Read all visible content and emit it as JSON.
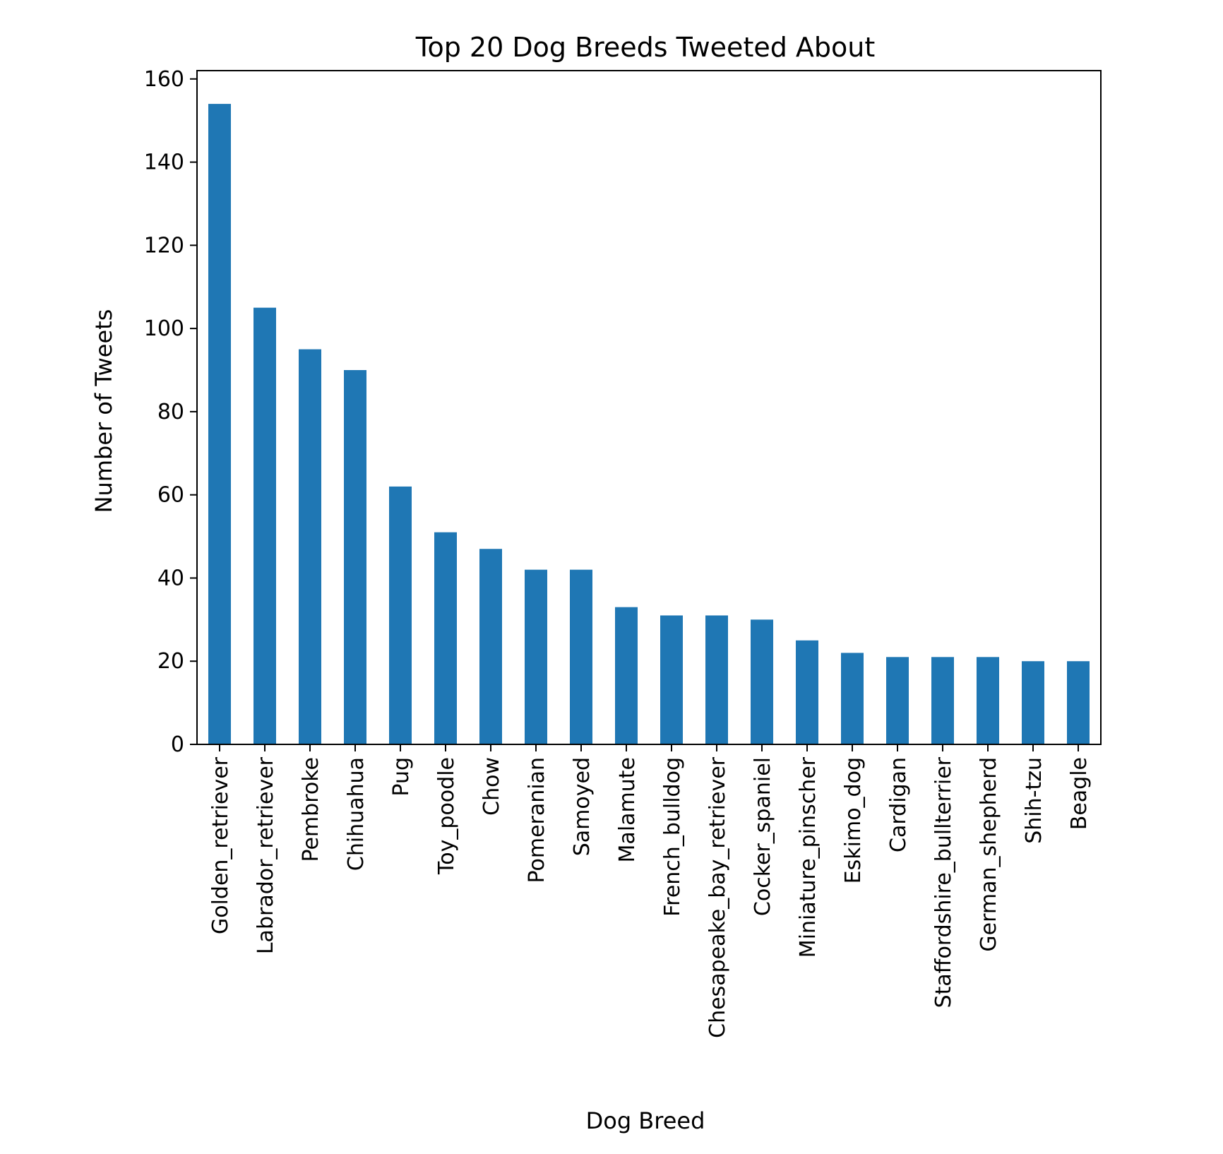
{
  "chart_data": {
    "type": "bar",
    "title": "Top 20 Dog Breeds Tweeted About",
    "xlabel": "Dog Breed",
    "ylabel": "Number of Tweets",
    "ylim": [
      0,
      162
    ],
    "yticks": [
      0,
      20,
      40,
      60,
      80,
      100,
      120,
      140,
      160
    ],
    "grid": false,
    "legend": "none",
    "bar_color": "#1f77b4",
    "categories": [
      "Golden_retriever",
      "Labrador_retriever",
      "Pembroke",
      "Chihuahua",
      "Pug",
      "Toy_poodle",
      "Chow",
      "Pomeranian",
      "Samoyed",
      "Malamute",
      "French_bulldog",
      "Chesapeake_bay_retriever",
      "Cocker_spaniel",
      "Miniature_pinscher",
      "Eskimo_dog",
      "Cardigan",
      "Staffordshire_bullterrier",
      "German_shepherd",
      "Shih-tzu",
      "Beagle"
    ],
    "values": [
      154,
      105,
      95,
      90,
      62,
      51,
      47,
      42,
      42,
      33,
      31,
      31,
      30,
      25,
      22,
      21,
      21,
      21,
      20,
      20
    ]
  }
}
